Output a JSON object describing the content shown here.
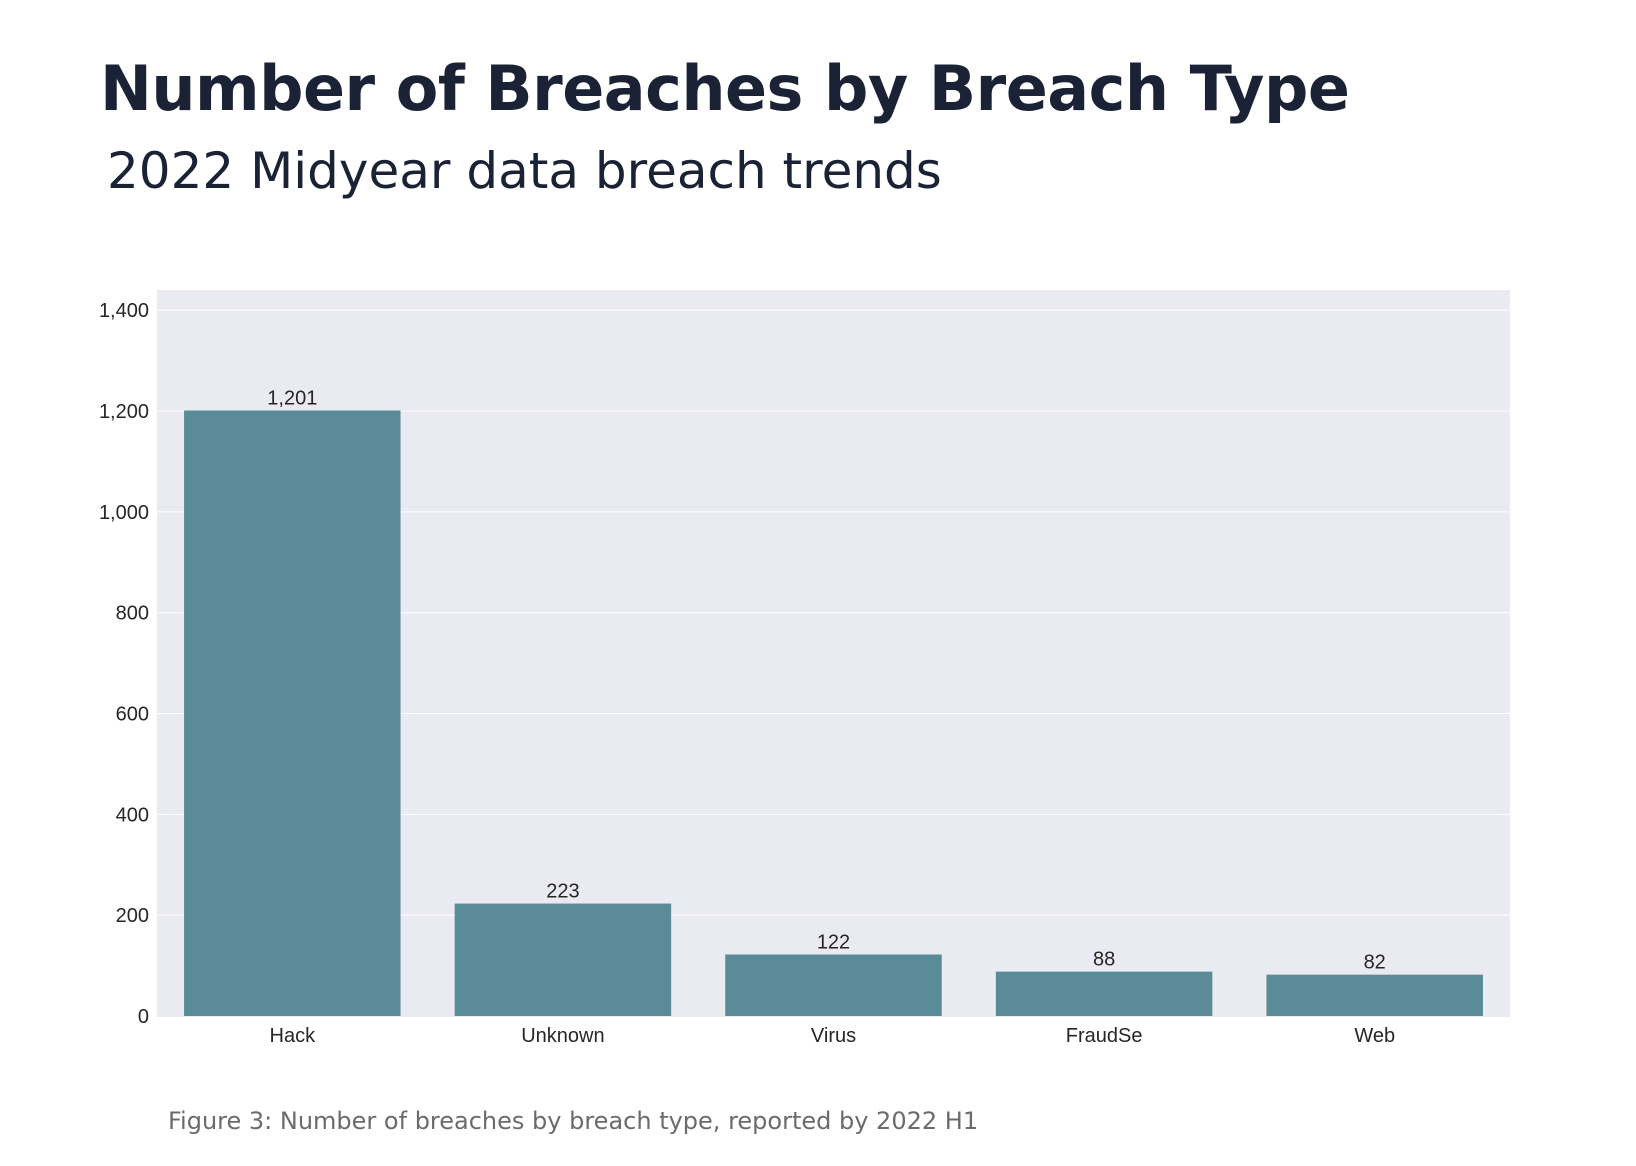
{
  "header": {
    "title": "Number of Breaches by Breach Type",
    "subtitle": "2022 Midyear data breach trends"
  },
  "caption": "Figure 3: Number of breaches by breach type, reported by 2022 H1",
  "colors": {
    "bar": "#5b8b96",
    "plot_background": "#eaeaf2",
    "gridline": "#ffffff",
    "tick_text": "#262626"
  },
  "chart_data": {
    "type": "bar",
    "categories": [
      "Hack",
      "Unknown",
      "Virus",
      "FraudSe",
      "Web"
    ],
    "values": [
      1201,
      223,
      122,
      88,
      82
    ],
    "value_labels": [
      "1,201",
      "223",
      "122",
      "88",
      "82"
    ],
    "title": "Number of Breaches by Breach Type",
    "subtitle": "2022 Midyear data breach trends",
    "xlabel": "",
    "ylabel": "",
    "ylim": [
      0,
      1440
    ],
    "yticks": [
      0,
      200,
      400,
      600,
      800,
      1000,
      1200,
      1400
    ],
    "ytick_labels": [
      "0",
      "200",
      "400",
      "600",
      "800",
      "1,000",
      "1,200",
      "1,400"
    ],
    "grid": true,
    "legend": "none"
  }
}
